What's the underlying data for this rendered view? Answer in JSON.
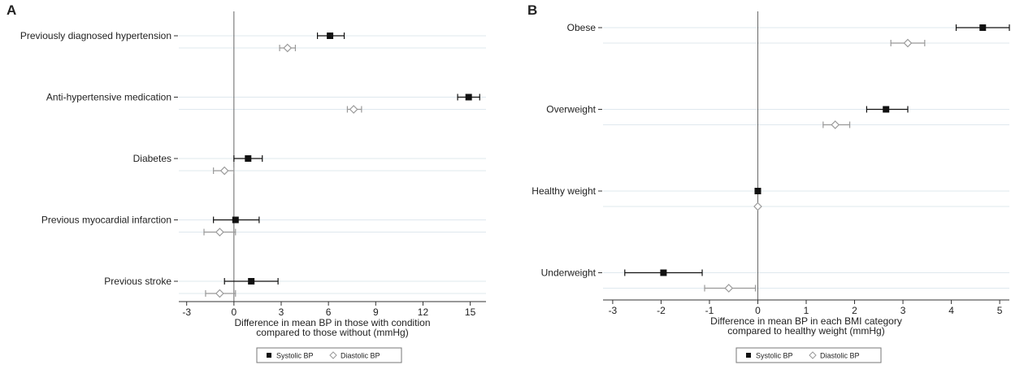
{
  "panels": [
    {
      "letter": "A"
    },
    {
      "letter": "B"
    }
  ],
  "legend": {
    "systolic": "Systolic BP",
    "diastolic": "Diastolic BP"
  },
  "colors": {
    "systolic": "#111111",
    "diastolic": "#999999",
    "gridline": "#dfe8ee",
    "axis": "#333333",
    "zero_line": "#666666"
  },
  "chart_data": [
    {
      "type": "forest",
      "title": "",
      "xlabel_lines": [
        "Difference in mean BP in those with condition",
        "compared to those without (mmHg)"
      ],
      "xlim": [
        -3.5,
        16
      ],
      "xticks": [
        -3,
        0,
        3,
        6,
        9,
        12,
        15
      ],
      "categories": [
        "Previously diagnosed hypertension",
        "Anti-hypertensive medication",
        "Diabetes",
        "Previous myocardial infarction",
        "Previous stroke"
      ],
      "legend_position": "bottom",
      "series": [
        {
          "name": "Systolic BP",
          "marker": "filled-square",
          "values": [
            6.1,
            14.9,
            0.9,
            0.1,
            1.1
          ],
          "ci_low": [
            5.3,
            14.2,
            0.0,
            -1.3,
            -0.6
          ],
          "ci_high": [
            7.0,
            15.6,
            1.8,
            1.6,
            2.8
          ]
        },
        {
          "name": "Diastolic BP",
          "marker": "hollow-diamond",
          "values": [
            3.4,
            7.6,
            -0.6,
            -0.9,
            -0.9
          ],
          "ci_low": [
            2.9,
            7.2,
            -1.3,
            -1.9,
            -1.8
          ],
          "ci_high": [
            3.9,
            8.1,
            0.0,
            0.1,
            0.1
          ]
        }
      ]
    },
    {
      "type": "forest",
      "title": "",
      "xlabel_lines": [
        "Difference in mean BP in each BMI category",
        "compared to healthy weight (mmHg)"
      ],
      "xlim": [
        -3.2,
        5.2
      ],
      "xticks": [
        -3,
        -2,
        -1,
        0,
        1,
        2,
        3,
        4,
        5
      ],
      "categories": [
        "Obese",
        "Overweight",
        "Healthy weight",
        "Underweight"
      ],
      "legend_position": "bottom",
      "series": [
        {
          "name": "Systolic BP",
          "marker": "filled-square",
          "values": [
            4.65,
            2.65,
            0.0,
            -1.95
          ],
          "ci_low": [
            4.1,
            2.25,
            0.0,
            -2.75
          ],
          "ci_high": [
            5.2,
            3.1,
            0.0,
            -1.15
          ]
        },
        {
          "name": "Diastolic BP",
          "marker": "hollow-diamond",
          "values": [
            3.1,
            1.6,
            0.0,
            -0.6
          ],
          "ci_low": [
            2.75,
            1.35,
            0.0,
            -1.1
          ],
          "ci_high": [
            3.45,
            1.9,
            0.0,
            -0.05
          ]
        }
      ]
    }
  ]
}
